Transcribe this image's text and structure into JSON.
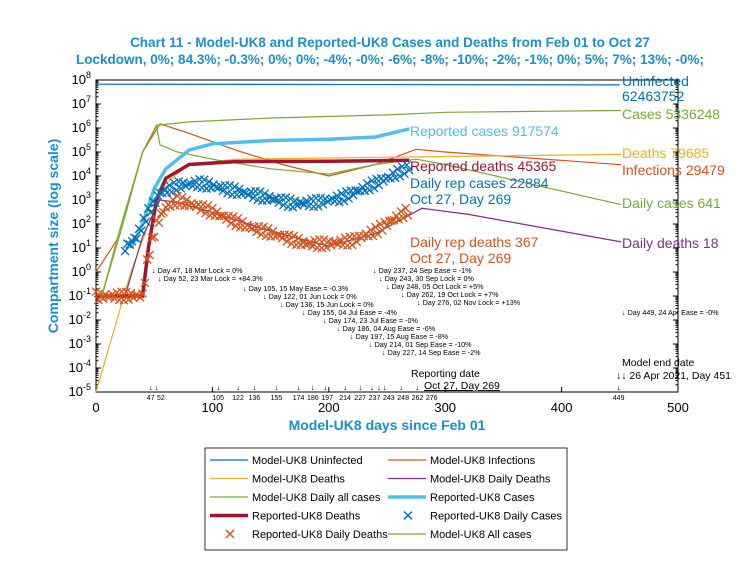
{
  "chart_data": {
    "type": "line",
    "title": "Chart 11 - Model-UK8 and Reported-UK8 Cases and Deaths from Feb 01 to Oct 27",
    "subtitle": "Lockdown, 0%; 84.3%; -0.3%; 0%; 0%; -4%; -0%; -6%; -8%; -10%; -2%; -1%; 0%; 5%; 7%; 13%; -0%;",
    "xlabel": "Model-UK8 days since Feb 01",
    "ylabel": "Compartment size (log scale)",
    "xlim": [
      0,
      500
    ],
    "ylim": [
      1e-05,
      100000000.0
    ],
    "yscale": "log",
    "xticks": [
      0,
      100,
      200,
      300,
      400,
      500
    ],
    "yticks": [
      "10^-5",
      "10^-4",
      "10^-3",
      "10^-2",
      "10^-1",
      "10^0",
      "10^1",
      "10^2",
      "10^3",
      "10^4",
      "10^5",
      "10^6",
      "10^7",
      "10^8"
    ],
    "grid": false,
    "legend_placement": "bottom",
    "series": [
      {
        "name": "Model-UK8 Uninfected",
        "color": "#0072bd",
        "style": "line",
        "points": [
          [
            0,
            67000000.0
          ],
          [
            450,
            62460000.0
          ]
        ]
      },
      {
        "name": "Model-UK8 Infections",
        "color": "#d95319",
        "style": "line",
        "points": [
          [
            0,
            1
          ],
          [
            20,
            30
          ],
          [
            40,
            100000.0
          ],
          [
            55,
            1500000.0
          ],
          [
            80,
            600000.0
          ],
          [
            120,
            120000.0
          ],
          [
            160,
            30000.0
          ],
          [
            200,
            10000.0
          ],
          [
            240,
            30000.0
          ],
          [
            275,
            130000.0
          ],
          [
            300,
            100000.0
          ],
          [
            451,
            29479
          ]
        ]
      },
      {
        "name": "Model-UK8 Deaths",
        "color": "#edb120",
        "style": "line",
        "points": [
          [
            0,
            1e-05
          ],
          [
            30,
            1
          ],
          [
            45,
            100
          ],
          [
            60,
            5000.0
          ],
          [
            80,
            30000.0
          ],
          [
            120,
            50000.0
          ],
          [
            200,
            56000.0
          ],
          [
            300,
            65000.0
          ],
          [
            451,
            79685
          ]
        ]
      },
      {
        "name": "Model-UK8 Daily Deaths",
        "color": "#7e2f8e",
        "style": "line",
        "points": [
          [
            25,
            0.1
          ],
          [
            40,
            30
          ],
          [
            55,
            1000.0
          ],
          [
            70,
            800
          ],
          [
            100,
            300
          ],
          [
            150,
            50
          ],
          [
            200,
            12
          ],
          [
            240,
            40
          ],
          [
            280,
            450
          ],
          [
            320,
            250
          ],
          [
            451,
            18
          ]
        ]
      },
      {
        "name": "Model-UK8 Daily all cases",
        "color": "#77ac30",
        "style": "line",
        "points": [
          [
            5,
            0.1
          ],
          [
            20,
            30
          ],
          [
            40,
            100000.0
          ],
          [
            52,
            1200000.0
          ],
          [
            55,
            200000.0
          ],
          [
            70,
            100000.0
          ],
          [
            100,
            50000.0
          ],
          [
            150,
            20000.0
          ],
          [
            200,
            12000.0
          ],
          [
            240,
            30000.0
          ],
          [
            275,
            50000.0
          ],
          [
            300,
            30000.0
          ],
          [
            451,
            641
          ]
        ]
      },
      {
        "name": "Reported-UK8 Cases",
        "color": "#4dbeee",
        "style": "thick",
        "points": [
          [
            30,
            10
          ],
          [
            40,
            100
          ],
          [
            50,
            3000.0
          ],
          [
            60,
            20000.0
          ],
          [
            80,
            120000.0
          ],
          [
            100,
            220000.0
          ],
          [
            150,
            300000.0
          ],
          [
            200,
            340000.0
          ],
          [
            240,
            420000.0
          ],
          [
            269,
            917574
          ]
        ]
      },
      {
        "name": "Reported-UK8 Deaths",
        "color": "#a2142f",
        "style": "thick",
        "points": [
          [
            0,
            0.1
          ],
          [
            40,
            0.1
          ],
          [
            45,
            10
          ],
          [
            52,
            1000.0
          ],
          [
            60,
            8000.0
          ],
          [
            80,
            30000.0
          ],
          [
            120,
            40000.0
          ],
          [
            200,
            41000.0
          ],
          [
            269,
            45365
          ]
        ]
      },
      {
        "name": "Reported-UK8 Daily Cases",
        "color": "#0072bd",
        "style": "x",
        "points": [
          [
            25,
            10
          ],
          [
            35,
            30
          ],
          [
            45,
            300
          ],
          [
            55,
            2000.0
          ],
          [
            70,
            4000.0
          ],
          [
            90,
            5000.0
          ],
          [
            110,
            3000.0
          ],
          [
            140,
            1500.0
          ],
          [
            170,
            700
          ],
          [
            190,
            800
          ],
          [
            210,
            1200.0
          ],
          [
            230,
            3000.0
          ],
          [
            250,
            8000.0
          ],
          [
            269,
            22884
          ]
        ]
      },
      {
        "name": "Reported-UK8 Daily Deaths",
        "color": "#d95319",
        "style": "x",
        "points": [
          [
            0,
            0.1
          ],
          [
            40,
            0.1
          ],
          [
            45,
            5
          ],
          [
            52,
            100
          ],
          [
            60,
            500
          ],
          [
            70,
            1000.0
          ],
          [
            90,
            500
          ],
          [
            110,
            200
          ],
          [
            130,
            80
          ],
          [
            160,
            30
          ],
          [
            180,
            15
          ],
          [
            200,
            15
          ],
          [
            220,
            20
          ],
          [
            240,
            50
          ],
          [
            255,
            150
          ],
          [
            269,
            367
          ]
        ]
      },
      {
        "name": "Model-UK8 All cases",
        "color": "#77ac30",
        "style": "line",
        "points": [
          [
            5,
            0.1
          ],
          [
            20,
            50
          ],
          [
            40,
            100000.0
          ],
          [
            52,
            1300000.0
          ],
          [
            80,
            1800000.0
          ],
          [
            150,
            2600000.0
          ],
          [
            250,
            3500000.0
          ],
          [
            300,
            4500000.0
          ],
          [
            451,
            5336248
          ]
        ]
      }
    ],
    "end_labels": [
      {
        "text": "Uninfected",
        "color": "#0072bd"
      },
      {
        "text": "62463752",
        "color": "#0072bd"
      },
      {
        "text": "Cases 5336248",
        "color": "#77ac30"
      },
      {
        "text": "Reported cases 917574",
        "color": "#4dbeee"
      },
      {
        "text": "Deaths 79685",
        "color": "#edb120"
      },
      {
        "text": "Infections 29479",
        "color": "#d95319"
      },
      {
        "text": "Reported deaths 45365",
        "color": "#a2142f"
      },
      {
        "text": "Daily rep cases 22884",
        "color": "#0072bd"
      },
      {
        "text": "Oct 27, Day 269",
        "color": "#0072bd"
      },
      {
        "text": "Daily cases 641",
        "color": "#77ac30"
      },
      {
        "text": "Daily rep deaths 367",
        "color": "#d95319"
      },
      {
        "text": "Oct 27, Day 269",
        "color": "#d95319"
      },
      {
        "text": "Daily deaths 18",
        "color": "#7e2f8e"
      }
    ],
    "interventions": [
      "↓ Day 47, 18 Mar Lock = 0%",
      "↓ Day 52, 23 Mar Lock = +84.3%",
      "↓ Day 105, 15 May Ease = -0.3%",
      "↓ Day 122, 01 Jun Lock = 0%",
      "↓ Day 136, 15 Jun Lock = 0%",
      "↓ Day 155, 04 Jul Ease = -4%",
      "↓ Day 174, 23 Jul Ease = -0%",
      "↓ Day 186, 04 Aug Ease = -6%",
      "↓ Day 197, 15 Aug Ease = -8%",
      "↓ Day 214, 01 Sep Ease = -10%",
      "↓ Day 227, 14 Sep Ease = -2%",
      "↓ Day 237, 24 Sep Ease = -1%",
      "↓ Day 243, 30 Sep Lock = 0%",
      "↓ Day 248, 05 Oct Lock = +5%",
      "↓ Day 262, 19 Oct Lock = +7%",
      "↓ Day 276, 02 Nov Lock = +13%",
      "↓ Day 449, 24 Apr Ease = -0%"
    ],
    "intervention_days": [
      47,
      52,
      105,
      122,
      136,
      155,
      174,
      186,
      197,
      214,
      227,
      237,
      243,
      248,
      262,
      276,
      449
    ],
    "reporting_date": {
      "label": "Reporting date",
      "value": "Oct 27, Day 269"
    },
    "model_end": {
      "label": "Model end date",
      "value": "↓↓ 26 Apr 2021, Day 451"
    }
  }
}
